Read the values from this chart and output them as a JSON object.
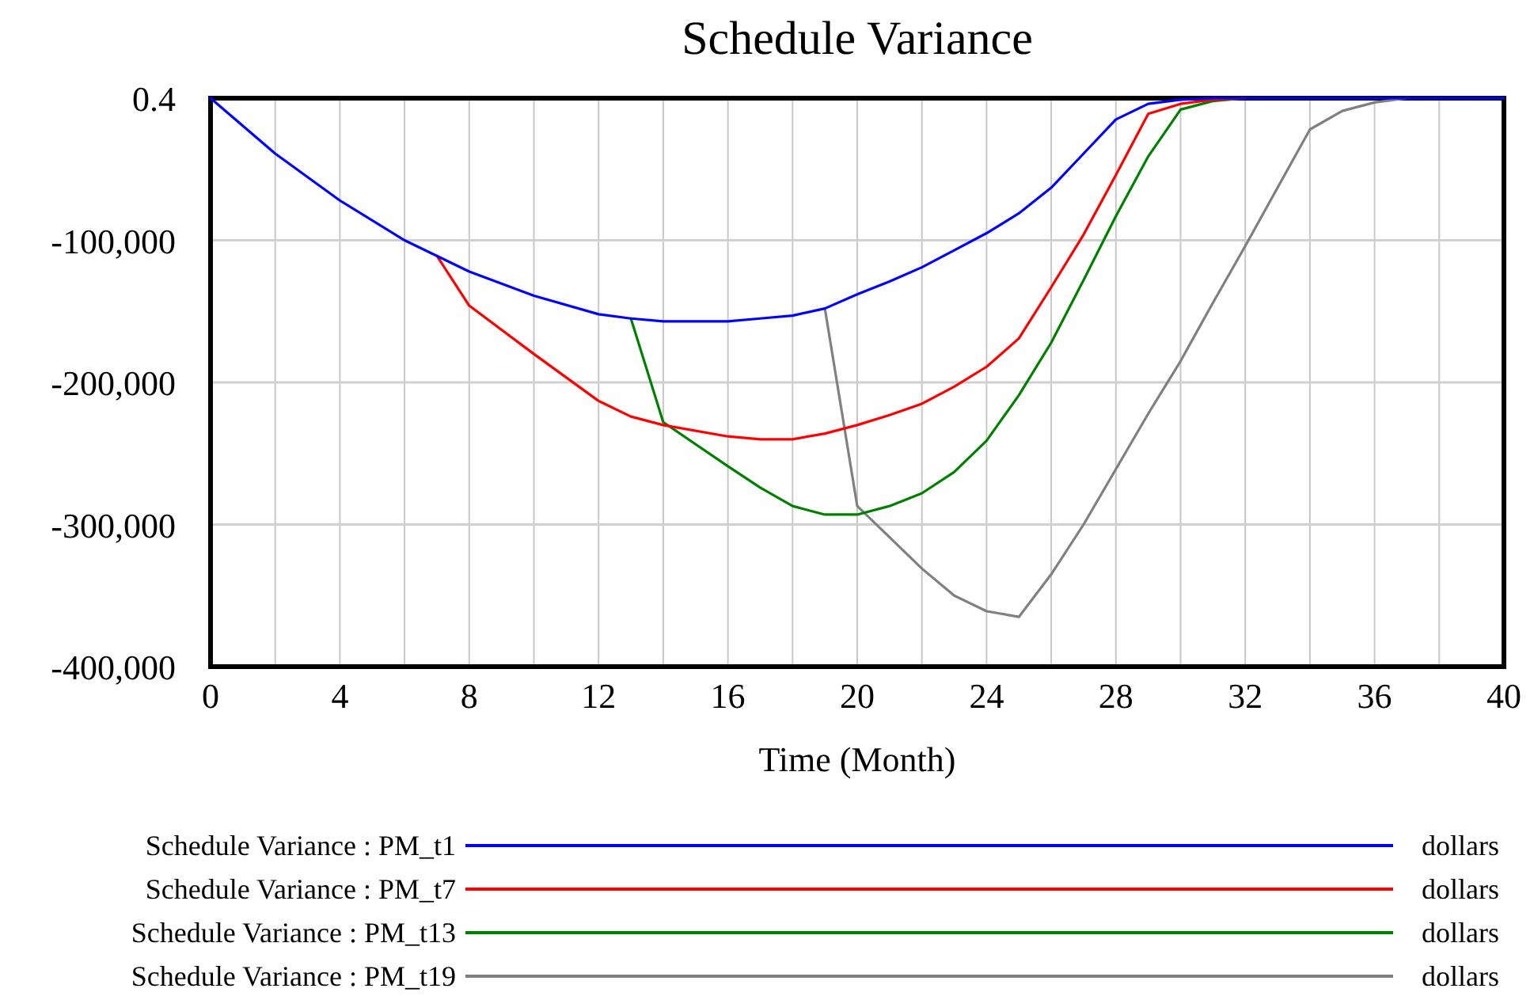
{
  "chart_data": {
    "type": "line",
    "title": "Schedule Variance",
    "xlabel": "Time (Month)",
    "x": [
      0,
      2,
      4,
      6,
      7,
      8,
      10,
      12,
      13,
      14,
      16,
      17,
      18,
      19,
      20,
      21,
      22,
      23,
      24,
      25,
      26,
      27,
      28,
      29,
      30,
      31,
      32,
      33,
      34,
      35,
      36,
      37,
      38,
      40
    ],
    "series": [
      {
        "name": "Schedule Variance : PM_t1",
        "color": "#0000ff",
        "values": [
          0,
          -39000,
          -72000,
          -100000,
          -111000,
          -122000,
          -139000,
          -152000,
          -155000,
          -157000,
          -157000,
          -155000,
          -153000,
          -148000,
          -138000,
          -129000,
          -119000,
          -107000,
          -95000,
          -81000,
          -63000,
          -39000,
          -15000,
          -4000,
          -1000,
          0,
          0,
          0,
          0,
          0,
          0,
          0,
          0,
          0
        ]
      },
      {
        "name": "Schedule Variance : PM_t7",
        "color": "#ff0000",
        "values": [
          null,
          null,
          null,
          null,
          -111000,
          -146000,
          -180000,
          -213000,
          -224000,
          -230000,
          -238000,
          -240000,
          -240000,
          -236000,
          -230000,
          -223000,
          -215000,
          -203000,
          -189000,
          -169000,
          -133000,
          -96000,
          -54000,
          -11000,
          -4000,
          -1000,
          0,
          null,
          null,
          null,
          null,
          null,
          null,
          null
        ]
      },
      {
        "name": "Schedule Variance : PM_t13",
        "color": "#008000",
        "values": [
          null,
          null,
          null,
          null,
          null,
          null,
          null,
          null,
          -155000,
          -228000,
          -259000,
          -274000,
          -287000,
          -293000,
          -293000,
          -287000,
          -278000,
          -263000,
          -241000,
          -209000,
          -172000,
          -128000,
          -83000,
          -41000,
          -8000,
          -2000,
          0,
          null,
          null,
          null,
          null,
          null,
          null,
          null
        ]
      },
      {
        "name": "Schedule Variance : PM_t19",
        "color": "#808080",
        "values": [
          null,
          null,
          null,
          null,
          null,
          null,
          null,
          null,
          null,
          null,
          null,
          null,
          null,
          -148000,
          -287000,
          -309000,
          -331000,
          -350000,
          -361000,
          -365000,
          -335000,
          -300000,
          -261000,
          -222000,
          -185000,
          -144000,
          -104000,
          -63000,
          -22000,
          -9000,
          -3000,
          0,
          null,
          null
        ]
      }
    ],
    "xlim": [
      0,
      40
    ],
    "xticks": [
      0,
      {
        "value": 2,
        "label": null
      },
      4,
      {
        "value": 6,
        "label": null
      },
      8,
      {
        "value": 10,
        "label": null
      },
      12,
      {
        "value": 14,
        "label": null
      },
      16,
      {
        "value": 18,
        "label": null
      },
      20,
      {
        "value": 22,
        "label": null
      },
      24,
      {
        "value": 26,
        "label": null
      },
      28,
      {
        "value": 30,
        "label": null
      },
      32,
      {
        "value": 34,
        "label": null
      },
      36,
      {
        "value": 38,
        "label": null
      },
      40
    ],
    "ylim": [
      -400000,
      0.4
    ],
    "yticks": [
      {
        "value": -400000,
        "label": "-400,000"
      },
      {
        "value": -300000,
        "label": "-300,000"
      },
      {
        "value": -200000,
        "label": "-200,000"
      },
      {
        "value": -100000,
        "label": "-100,000"
      },
      0.4
    ],
    "grid": true,
    "legend": "bottom",
    "annotations": [
      "dollars",
      "dollars",
      "dollars",
      "dollars"
    ]
  }
}
